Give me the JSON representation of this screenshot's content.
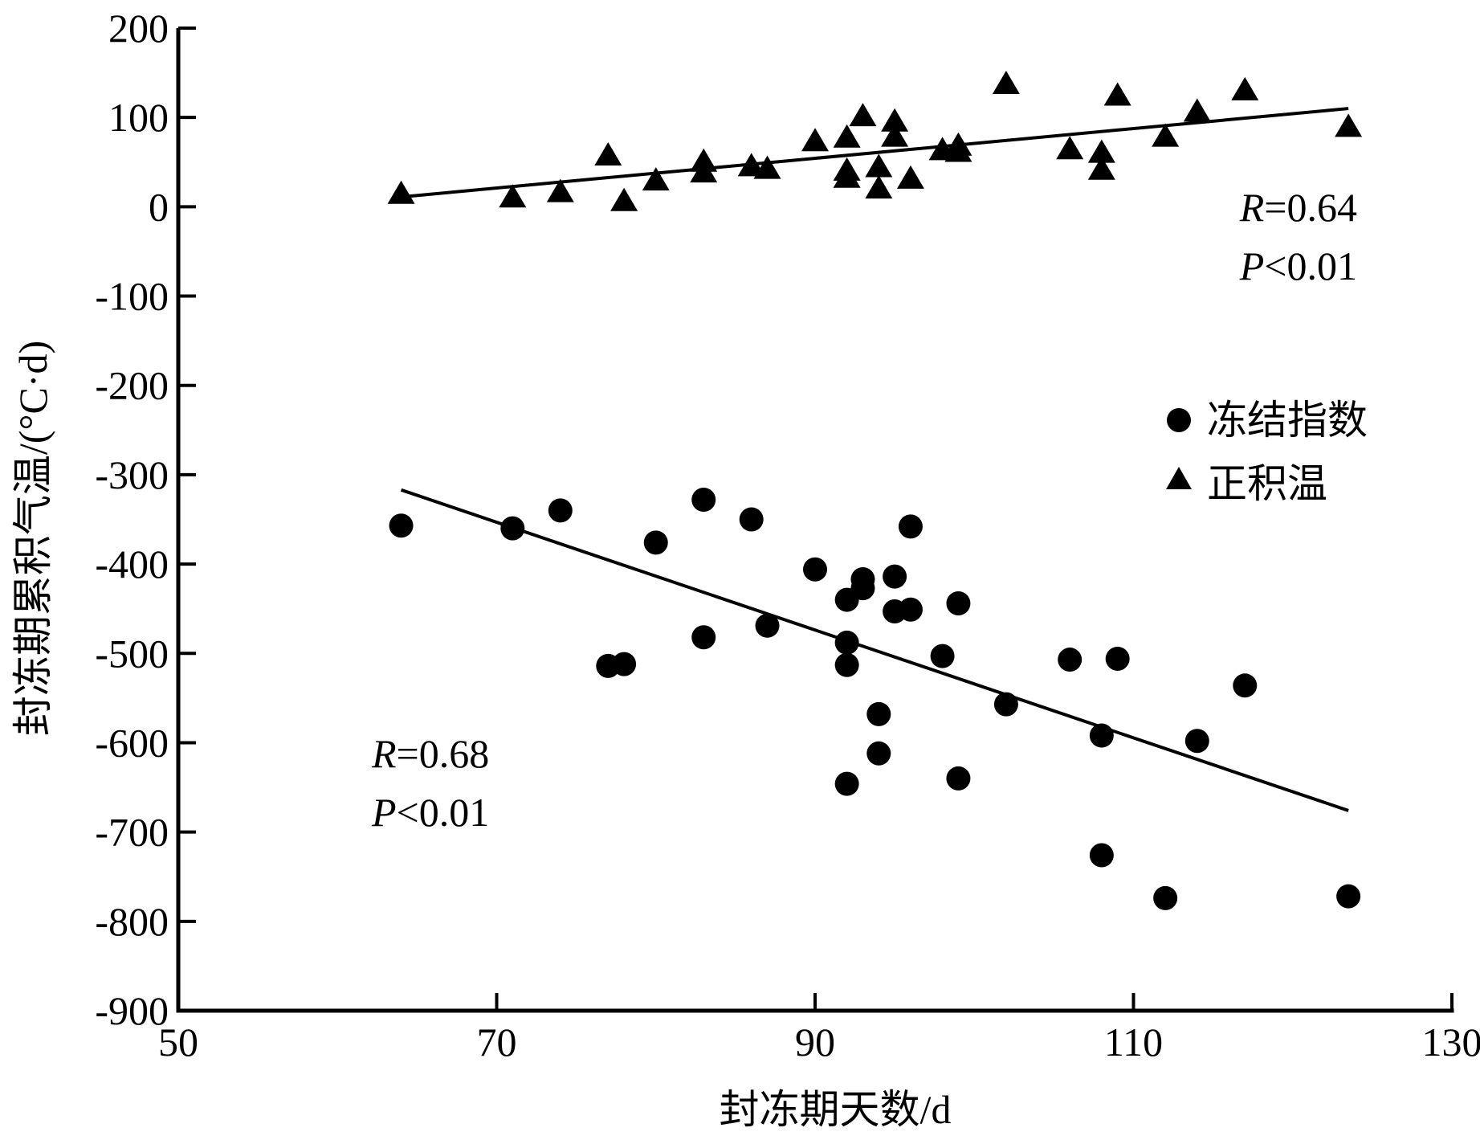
{
  "chart_data": {
    "type": "scatter",
    "xlabel": "封冻期天数/d",
    "ylabel": "封冻期累积气温/(°C·d)",
    "xlim": [
      50,
      130
    ],
    "ylim": [
      -900,
      200
    ],
    "xticks": [
      "50",
      "70",
      "90",
      "110",
      "130"
    ],
    "yticks": [
      "200",
      "100",
      "0",
      "-100",
      "-200",
      "-300",
      "-400",
      "-500",
      "-600",
      "-700",
      "-800",
      "-900"
    ],
    "legend_position": "right-middle",
    "series": [
      {
        "name": "冻结指数",
        "marker": "circle",
        "color": "#000000",
        "points": [
          [
            64,
            -357
          ],
          [
            71,
            -360
          ],
          [
            74,
            -340
          ],
          [
            77,
            -514
          ],
          [
            78,
            -512
          ],
          [
            80,
            -376
          ],
          [
            83,
            -328
          ],
          [
            83,
            -482
          ],
          [
            86,
            -350
          ],
          [
            87,
            -469
          ],
          [
            90,
            -406
          ],
          [
            92,
            -440
          ],
          [
            92,
            -488
          ],
          [
            92,
            -513
          ],
          [
            92,
            -646
          ],
          [
            93,
            -417
          ],
          [
            93,
            -427
          ],
          [
            94,
            -568
          ],
          [
            94,
            -612
          ],
          [
            95,
            -414
          ],
          [
            95,
            -453
          ],
          [
            96,
            -358
          ],
          [
            96,
            -451
          ],
          [
            98,
            -503
          ],
          [
            99,
            -444
          ],
          [
            99,
            -640
          ],
          [
            102,
            -557
          ],
          [
            106,
            -507
          ],
          [
            108,
            -592
          ],
          [
            108,
            -726
          ],
          [
            109,
            -506
          ],
          [
            112,
            -774
          ],
          [
            114,
            -598
          ],
          [
            117,
            -536
          ],
          [
            123.5,
            -772
          ]
        ],
        "fit": {
          "x": [
            64,
            123.5
          ],
          "y": [
            -317,
            -676
          ]
        },
        "annotation": {
          "r_label": "R",
          "r_value": "=0.68",
          "p_label": "P",
          "p_value": "<0.01"
        }
      },
      {
        "name": "正积温",
        "marker": "triangle",
        "color": "#000000",
        "points": [
          [
            64,
            14
          ],
          [
            71,
            10
          ],
          [
            74,
            16
          ],
          [
            77,
            57
          ],
          [
            78,
            6
          ],
          [
            80,
            29
          ],
          [
            83,
            50
          ],
          [
            83,
            38
          ],
          [
            86,
            45
          ],
          [
            87,
            42
          ],
          [
            90,
            73
          ],
          [
            92,
            77
          ],
          [
            92,
            40
          ],
          [
            92,
            32
          ],
          [
            93,
            101
          ],
          [
            94,
            44
          ],
          [
            94,
            20
          ],
          [
            95,
            95
          ],
          [
            95,
            78
          ],
          [
            96,
            31
          ],
          [
            98,
            63
          ],
          [
            99,
            68
          ],
          [
            99,
            61
          ],
          [
            102,
            137
          ],
          [
            106,
            64
          ],
          [
            108,
            60
          ],
          [
            108,
            41
          ],
          [
            109,
            124
          ],
          [
            112,
            78
          ],
          [
            114,
            106
          ],
          [
            117,
            130
          ],
          [
            123.5,
            89
          ]
        ],
        "fit": {
          "x": [
            64,
            123.5
          ],
          "y": [
            11,
            110
          ]
        },
        "annotation": {
          "r_label": "R",
          "r_value": "=0.64",
          "p_label": "P",
          "p_value": "<0.01"
        }
      }
    ]
  }
}
